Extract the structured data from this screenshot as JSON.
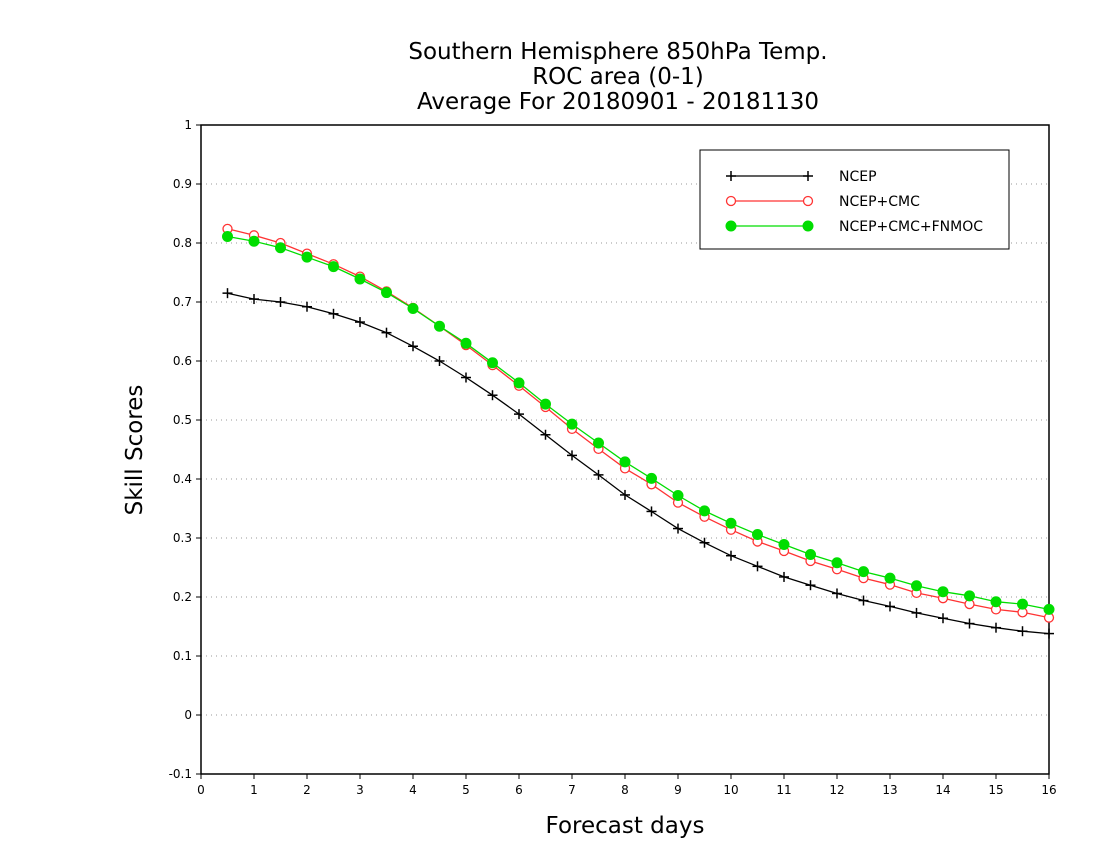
{
  "chart_data": {
    "type": "line",
    "title_lines": [
      "Southern Hemisphere 850hPa Temp.",
      "ROC area (0-1)",
      "Average For 20180901 - 20181130"
    ],
    "xlabel": "Forecast days",
    "ylabel": "Skill Scores",
    "xlim": [
      0,
      16
    ],
    "ylim": [
      -0.1,
      1
    ],
    "x_ticks": [
      "0",
      "1",
      "2",
      "3",
      "4",
      "5",
      "6",
      "7",
      "8",
      "9",
      "10",
      "11",
      "12",
      "13",
      "14",
      "15",
      "16"
    ],
    "y_ticks": [
      "-0.1",
      "0",
      "0.1",
      "0.2",
      "0.3",
      "0.4",
      "0.5",
      "0.6",
      "0.7",
      "0.8",
      "0.9",
      "1"
    ],
    "y_grid": true,
    "legend_position": "top-right",
    "x": [
      0.5,
      1,
      1.5,
      2,
      2.5,
      3,
      3.5,
      4,
      4.5,
      5,
      5.5,
      6,
      6.5,
      7,
      7.5,
      8,
      8.5,
      9,
      9.5,
      10,
      10.5,
      11,
      11.5,
      12,
      12.5,
      13,
      13.5,
      14,
      14.5,
      15,
      15.5,
      16
    ],
    "series": [
      {
        "name": "NCEP",
        "color": "#000000",
        "marker": "plus",
        "values": [
          0.715,
          0.705,
          0.7,
          0.692,
          0.68,
          0.666,
          0.648,
          0.625,
          0.6,
          0.572,
          0.542,
          0.51,
          0.475,
          0.44,
          0.407,
          0.373,
          0.345,
          0.316,
          0.292,
          0.27,
          0.252,
          0.234,
          0.22,
          0.206,
          0.194,
          0.184,
          0.173,
          0.164,
          0.155,
          0.148,
          0.142,
          0.138
        ]
      },
      {
        "name": "NCEP+CMC",
        "color": "#ff3333",
        "marker": "open-circle",
        "values": [
          0.824,
          0.813,
          0.8,
          0.782,
          0.764,
          0.743,
          0.718,
          0.69,
          0.659,
          0.627,
          0.593,
          0.558,
          0.522,
          0.485,
          0.451,
          0.418,
          0.391,
          0.36,
          0.336,
          0.314,
          0.294,
          0.278,
          0.261,
          0.247,
          0.232,
          0.221,
          0.207,
          0.198,
          0.188,
          0.179,
          0.174,
          0.165
        ]
      },
      {
        "name": "NCEP+CMC+FNMOC",
        "color": "#00dd00",
        "marker": "filled-circle",
        "values": [
          0.811,
          0.803,
          0.792,
          0.776,
          0.76,
          0.739,
          0.716,
          0.689,
          0.659,
          0.63,
          0.597,
          0.563,
          0.527,
          0.493,
          0.461,
          0.429,
          0.401,
          0.372,
          0.346,
          0.325,
          0.306,
          0.289,
          0.272,
          0.258,
          0.243,
          0.232,
          0.219,
          0.209,
          0.202,
          0.192,
          0.188,
          0.179
        ]
      }
    ]
  }
}
